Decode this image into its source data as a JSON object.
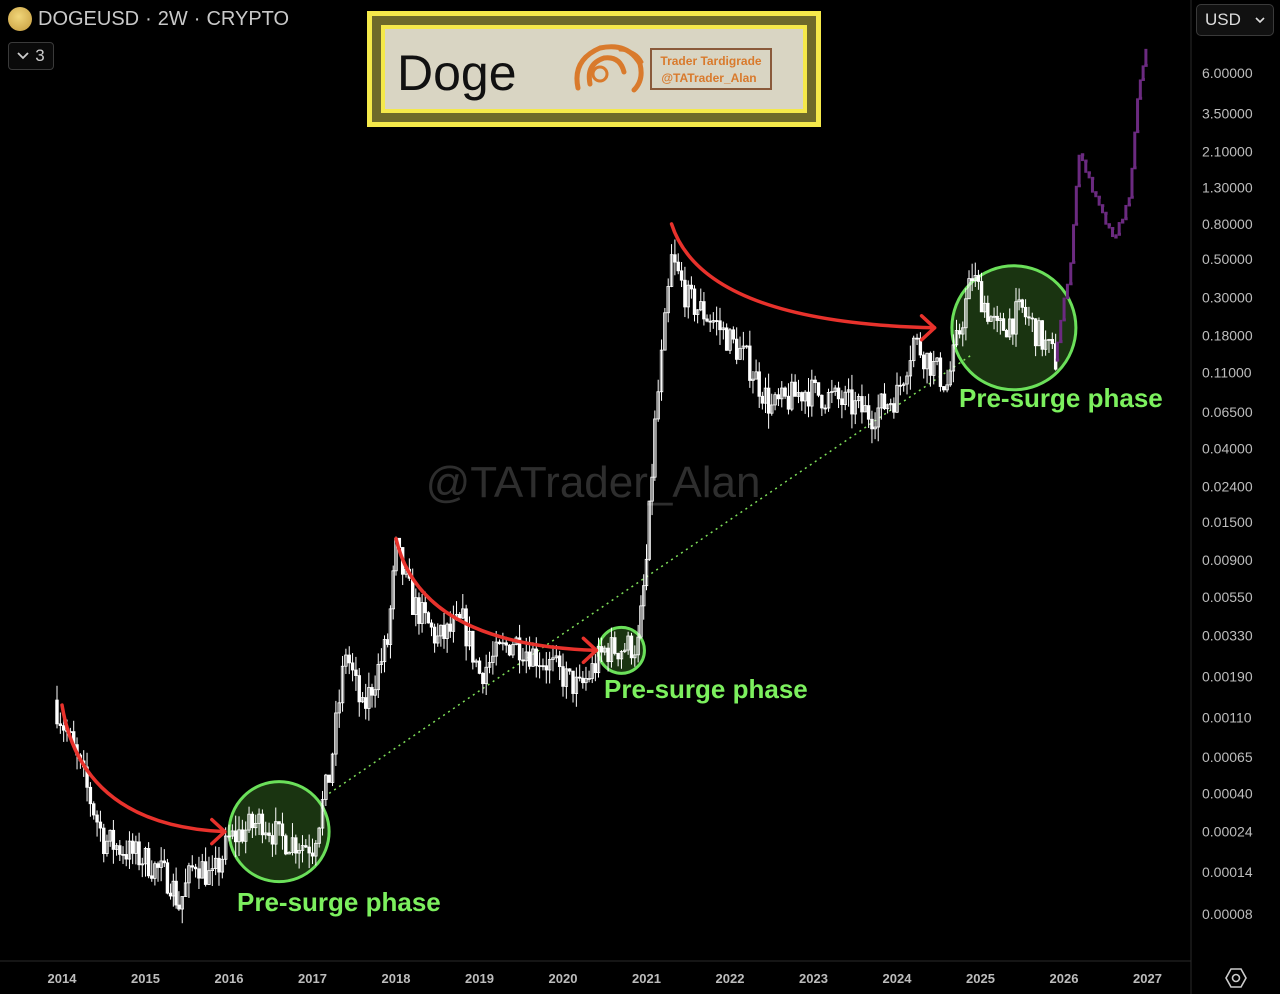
{
  "header": {
    "symbol": "DOGEUSD",
    "interval": "2W",
    "market": "CRYPTO",
    "separator": "·",
    "collapse_count": "3",
    "icon": "doge-coin-icon"
  },
  "currency_select": {
    "value": "USD"
  },
  "logo_box": {
    "title": "Doge",
    "brand_line1": "Trader Tardigrade",
    "brand_line2": "@TATrader_Alan"
  },
  "watermark": "@TATrader_Alan",
  "annotations": {
    "phase_label": "Pre-surge phase"
  },
  "colors": {
    "background": "#000000",
    "candles": "#ffffff",
    "projection": "#6b2a80",
    "circle_stroke": "#6be05a",
    "circle_fill": "#1f3d14",
    "arrow": "#e8322c",
    "trendline": "#7fe05a",
    "phase_label": "#7cf05e",
    "logo_border": "#f5e94a",
    "logo_inner": "#d9d5c3",
    "logo_brand": "#d97a2c"
  },
  "chart_data": {
    "type": "candlestick",
    "y_scale": "log",
    "ylim": [
      6e-05,
      9
    ],
    "xlim": [
      2013.8,
      2027.5
    ],
    "x_ticks": [
      "2014",
      "2015",
      "2016",
      "2017",
      "2018",
      "2019",
      "2020",
      "2021",
      "2022",
      "2023",
      "2024",
      "2025",
      "2026",
      "2027"
    ],
    "y_ticks": [
      "6.00000",
      "3.50000",
      "2.10000",
      "1.30000",
      "0.80000",
      "0.50000",
      "0.30000",
      "0.18000",
      "0.11000",
      "0.06500",
      "0.04000",
      "0.02400",
      "0.01500",
      "0.00900",
      "0.00550",
      "0.00330",
      "0.00190",
      "0.00110",
      "0.00065",
      "0.00040",
      "0.00024",
      "0.00014",
      "0.00008"
    ],
    "series": [
      {
        "role": "price",
        "points": [
          [
            2013.9,
            0.00139
          ],
          [
            2014.1,
            0.0008
          ],
          [
            2014.3,
            0.00042
          ],
          [
            2014.5,
            0.000215
          ],
          [
            2015.0,
            0.000164
          ],
          [
            2015.3,
            0.000125
          ],
          [
            2015.4,
            9e-05
          ],
          [
            2015.6,
            0.000164
          ],
          [
            2015.8,
            0.000125
          ],
          [
            2016.0,
            0.000215
          ],
          [
            2016.4,
            0.00028
          ],
          [
            2016.6,
            0.00022
          ],
          [
            2017.0,
            0.0002
          ],
          [
            2017.2,
            0.0005
          ],
          [
            2017.4,
            0.0027
          ],
          [
            2017.6,
            0.00118
          ],
          [
            2017.9,
            0.003
          ],
          [
            2018.0,
            0.0103
          ],
          [
            2018.2,
            0.0051
          ],
          [
            2018.5,
            0.0031
          ],
          [
            2018.8,
            0.0039
          ],
          [
            2019.0,
            0.002
          ],
          [
            2019.4,
            0.0031
          ],
          [
            2019.8,
            0.0023
          ],
          [
            2020.2,
            0.0016
          ],
          [
            2020.5,
            0.0027
          ],
          [
            2020.9,
            0.0029
          ],
          [
            2021.0,
            0.0088
          ],
          [
            2021.1,
            0.054
          ],
          [
            2021.3,
            0.49
          ],
          [
            2021.5,
            0.29
          ],
          [
            2021.8,
            0.22
          ],
          [
            2022.2,
            0.13
          ],
          [
            2022.5,
            0.068
          ],
          [
            2022.9,
            0.087
          ],
          [
            2023.3,
            0.076
          ],
          [
            2023.7,
            0.063
          ],
          [
            2024.0,
            0.082
          ],
          [
            2024.2,
            0.17
          ],
          [
            2024.6,
            0.093
          ],
          [
            2024.9,
            0.4
          ],
          [
            2025.2,
            0.19
          ],
          [
            2025.5,
            0.25
          ],
          [
            2025.9,
            0.13
          ]
        ]
      },
      {
        "role": "projection",
        "points": [
          [
            2025.9,
            0.13
          ],
          [
            2026.1,
            0.49
          ],
          [
            2026.2,
            2.1
          ],
          [
            2026.4,
            1.1
          ],
          [
            2026.6,
            0.65
          ],
          [
            2026.8,
            1.1
          ],
          [
            2026.9,
            4.2
          ],
          [
            2027.0,
            8.5
          ]
        ]
      }
    ],
    "phases": [
      {
        "label": "Pre-surge phase",
        "center": [
          2016.6,
          0.00024
        ],
        "arrow_from": [
          2014.0,
          0.0013
        ],
        "arrow_to": [
          2015.95,
          0.00024
        ]
      },
      {
        "label": "Pre-surge phase",
        "center": [
          2020.7,
          0.0027
        ],
        "arrow_from": [
          2018.0,
          0.012
        ],
        "arrow_to": [
          2020.4,
          0.0027
        ]
      },
      {
        "label": "Pre-surge phase",
        "center": [
          2025.4,
          0.2
        ],
        "arrow_from": [
          2021.3,
          0.8
        ],
        "arrow_to": [
          2024.45,
          0.2
        ]
      }
    ],
    "trendline": {
      "style": "dotted",
      "from": [
        2017.2,
        0.0004
      ],
      "to": [
        2024.9,
        0.14
      ]
    }
  }
}
